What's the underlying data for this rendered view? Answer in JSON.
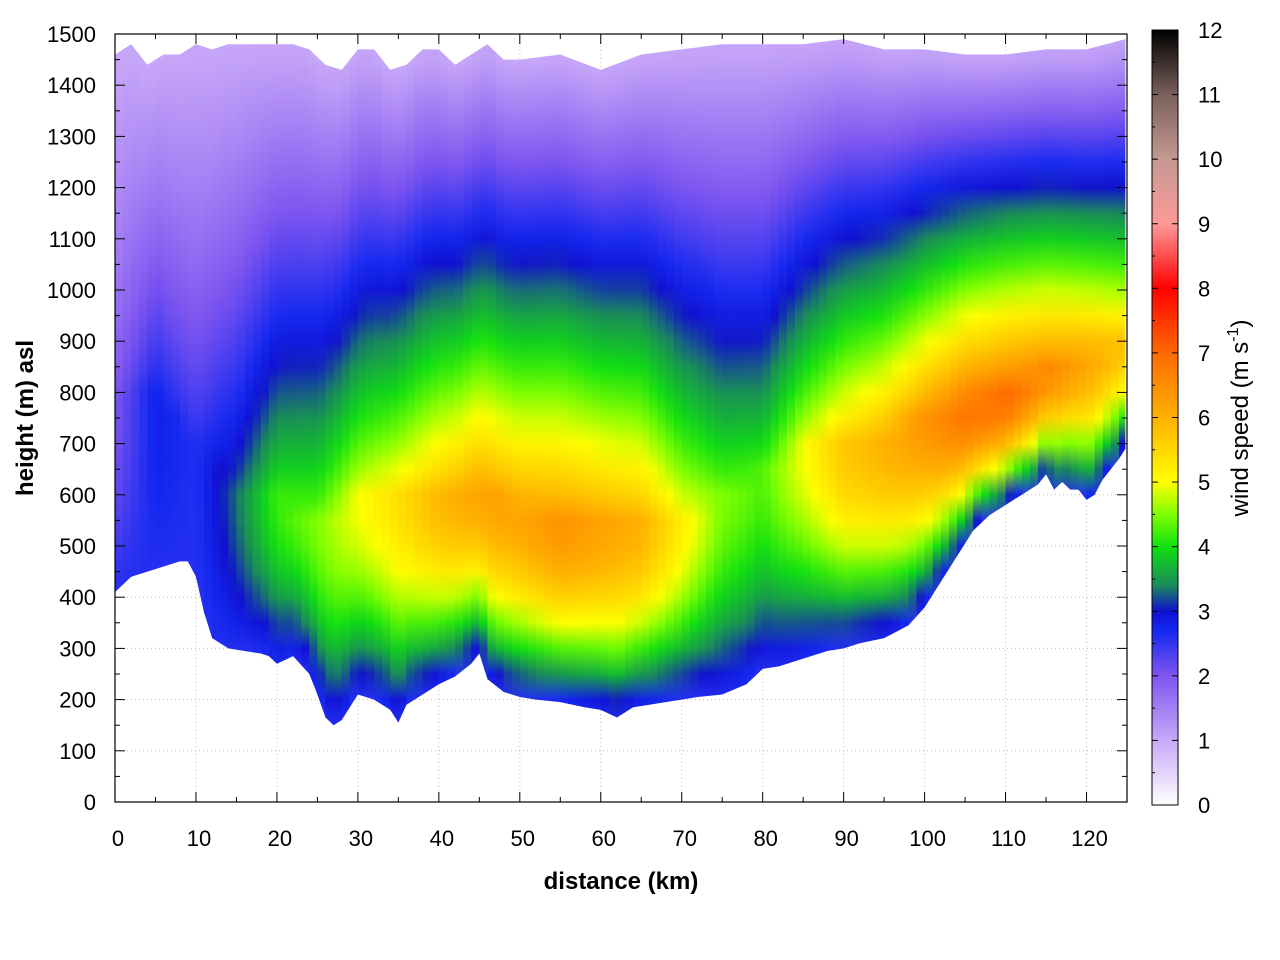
{
  "chart_data": {
    "type": "heatmap",
    "xlabel": "distance (km)",
    "ylabel": "height (m) asl",
    "xlim": [
      0,
      125
    ],
    "ylim": [
      0,
      1500
    ],
    "x_ticks": [
      "0",
      "10",
      "20",
      "30",
      "40",
      "50",
      "60",
      "70",
      "80",
      "90",
      "100",
      "110",
      "120"
    ],
    "y_ticks": [
      "0",
      "100",
      "200",
      "300",
      "400",
      "500",
      "600",
      "700",
      "800",
      "900",
      "1000",
      "1100",
      "1200",
      "1300",
      "1400",
      "1500"
    ],
    "grid": true,
    "colorbar": {
      "label_main": "wind speed (m s",
      "label_sup": "-1",
      "label_end": ")",
      "range": [
        0,
        12
      ],
      "ticks": [
        "0",
        "1",
        "2",
        "3",
        "4",
        "5",
        "6",
        "7",
        "8",
        "9",
        "10",
        "11",
        "12"
      ],
      "color_stops": [
        {
          "value": 0,
          "color": "#ffffff"
        },
        {
          "value": 1,
          "color": "#c8a8f8"
        },
        {
          "value": 2,
          "color": "#7f55f0"
        },
        {
          "value": 2.7,
          "color": "#1428f0"
        },
        {
          "value": 3,
          "color": "#1010d0"
        },
        {
          "value": 3.4,
          "color": "#1a8a5a"
        },
        {
          "value": 4,
          "color": "#10e010"
        },
        {
          "value": 4.5,
          "color": "#80ff00"
        },
        {
          "value": 5,
          "color": "#ffff00"
        },
        {
          "value": 6,
          "color": "#ffb000"
        },
        {
          "value": 7,
          "color": "#ff6a00"
        },
        {
          "value": 8,
          "color": "#ff0000"
        },
        {
          "value": 9,
          "color": "#ff9999"
        },
        {
          "value": 10,
          "color": "#c49a92"
        },
        {
          "value": 11,
          "color": "#7a5f5a"
        },
        {
          "value": 12,
          "color": "#000000"
        }
      ]
    },
    "terrain": {
      "x": [
        0,
        2,
        4,
        6,
        8,
        9,
        10,
        11,
        12,
        14,
        16,
        18,
        19,
        20,
        22,
        24,
        25,
        26,
        27,
        28,
        30,
        32,
        34,
        35,
        36,
        38,
        40,
        42,
        44,
        45,
        46,
        48,
        50,
        52,
        55,
        58,
        60,
        62,
        64,
        66,
        68,
        70,
        72,
        75,
        78,
        80,
        82,
        85,
        88,
        90,
        92,
        95,
        98,
        100,
        102,
        104,
        106,
        108,
        110,
        112,
        114,
        115,
        116,
        117,
        118,
        119,
        120,
        121,
        122,
        123,
        124,
        124.8
      ],
      "y": [
        410,
        440,
        450,
        460,
        470,
        470,
        440,
        370,
        320,
        300,
        295,
        290,
        285,
        270,
        285,
        250,
        210,
        165,
        150,
        160,
        210,
        200,
        180,
        155,
        190,
        210,
        230,
        245,
        270,
        290,
        240,
        215,
        205,
        200,
        195,
        185,
        180,
        165,
        185,
        190,
        195,
        200,
        205,
        210,
        230,
        260,
        265,
        280,
        295,
        300,
        310,
        320,
        345,
        380,
        430,
        480,
        530,
        560,
        580,
        600,
        620,
        640,
        610,
        625,
        610,
        610,
        590,
        600,
        630,
        650,
        670,
        690
      ]
    },
    "top_boundary": {
      "x": [
        0,
        2,
        4,
        6,
        8,
        10,
        12,
        14,
        16,
        18,
        20,
        22,
        24,
        26,
        28,
        30,
        32,
        34,
        36,
        38,
        40,
        42,
        44,
        46,
        48,
        50,
        55,
        60,
        65,
        70,
        75,
        80,
        85,
        90,
        95,
        100,
        105,
        110,
        115,
        120,
        124.8
      ],
      "y": [
        1460,
        1480,
        1440,
        1460,
        1460,
        1480,
        1470,
        1480,
        1480,
        1480,
        1480,
        1480,
        1470,
        1440,
        1430,
        1470,
        1470,
        1430,
        1440,
        1470,
        1470,
        1440,
        1460,
        1480,
        1450,
        1450,
        1460,
        1430,
        1460,
        1470,
        1480,
        1480,
        1480,
        1490,
        1470,
        1470,
        1460,
        1460,
        1470,
        1470,
        1490
      ]
    },
    "wind_max": [
      {
        "x": 0,
        "v": 2.0,
        "h": 800
      },
      {
        "x": 5,
        "v": 2.8,
        "h": 800
      },
      {
        "x": 10,
        "v": 2.6,
        "h": 700
      },
      {
        "x": 15,
        "v": 3.3,
        "h": 600
      },
      {
        "x": 20,
        "v": 4.2,
        "h": 600
      },
      {
        "x": 25,
        "v": 4.5,
        "h": 550
      },
      {
        "x": 30,
        "v": 5.0,
        "h": 600
      },
      {
        "x": 35,
        "v": 5.4,
        "h": 600
      },
      {
        "x": 40,
        "v": 5.9,
        "h": 600
      },
      {
        "x": 45,
        "v": 6.2,
        "h": 620
      },
      {
        "x": 50,
        "v": 6.2,
        "h": 580
      },
      {
        "x": 55,
        "v": 6.4,
        "h": 550
      },
      {
        "x": 60,
        "v": 6.2,
        "h": 550
      },
      {
        "x": 65,
        "v": 6.0,
        "h": 550
      },
      {
        "x": 70,
        "v": 5.2,
        "h": 550
      },
      {
        "x": 75,
        "v": 4.5,
        "h": 600
      },
      {
        "x": 80,
        "v": 4.3,
        "h": 650
      },
      {
        "x": 85,
        "v": 5.0,
        "h": 700
      },
      {
        "x": 90,
        "v": 5.7,
        "h": 700
      },
      {
        "x": 95,
        "v": 6.0,
        "h": 720
      },
      {
        "x": 100,
        "v": 6.4,
        "h": 760
      },
      {
        "x": 105,
        "v": 6.9,
        "h": 780
      },
      {
        "x": 110,
        "v": 7.0,
        "h": 800
      },
      {
        "x": 115,
        "v": 6.6,
        "h": 850
      },
      {
        "x": 120,
        "v": 6.2,
        "h": 880
      },
      {
        "x": 124.8,
        "v": 5.8,
        "h": 900
      }
    ]
  }
}
